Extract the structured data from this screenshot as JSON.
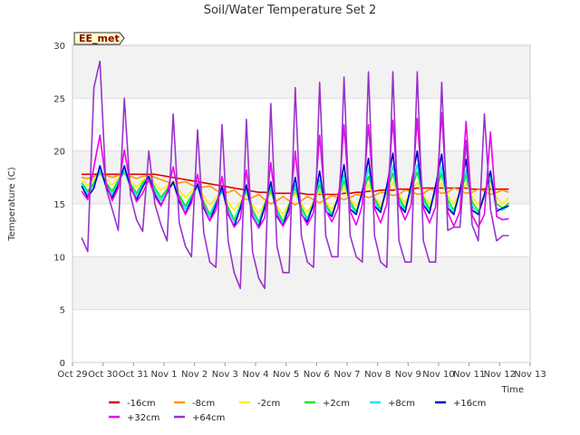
{
  "chart_data": {
    "type": "line",
    "title": "Soil/Water Temperature Set 2",
    "xlabel": "Time",
    "ylabel": "Temperature (C)",
    "badge": "EE_met",
    "ylim": [
      0,
      30
    ],
    "yticks": [
      0,
      5,
      10,
      15,
      20,
      25,
      30
    ],
    "xlim": [
      0,
      15
    ],
    "xticks": [
      {
        "pos": 0,
        "label": "Oct 29"
      },
      {
        "pos": 1,
        "label": "Oct 30"
      },
      {
        "pos": 2,
        "label": "Oct 31"
      },
      {
        "pos": 3,
        "label": "Nov 1"
      },
      {
        "pos": 4,
        "label": "Nov 2"
      },
      {
        "pos": 5,
        "label": "Nov 3"
      },
      {
        "pos": 6,
        "label": "Nov 4"
      },
      {
        "pos": 7,
        "label": "Nov 5"
      },
      {
        "pos": 8,
        "label": "Nov 6"
      },
      {
        "pos": 9,
        "label": "Nov 7"
      },
      {
        "pos": 10,
        "label": "Nov 8"
      },
      {
        "pos": 11,
        "label": "Nov 9"
      },
      {
        "pos": 12,
        "label": "Nov 10"
      },
      {
        "pos": 13,
        "label": "Nov 11"
      },
      {
        "pos": 14,
        "label": "Nov 12"
      },
      {
        "pos": 15,
        "label": "Nov 13"
      }
    ],
    "grid": true,
    "legend_position": "bottom",
    "x": [
      0.3,
      0.5,
      0.7,
      0.9,
      1.1,
      1.3,
      1.5,
      1.7,
      1.9,
      2.1,
      2.3,
      2.5,
      2.7,
      2.9,
      3.1,
      3.3,
      3.5,
      3.7,
      3.9,
      4.1,
      4.3,
      4.5,
      4.7,
      4.9,
      5.1,
      5.3,
      5.5,
      5.7,
      5.9,
      6.1,
      6.3,
      6.5,
      6.7,
      6.9,
      7.1,
      7.3,
      7.5,
      7.7,
      7.9,
      8.1,
      8.3,
      8.5,
      8.7,
      8.9,
      9.1,
      9.3,
      9.5,
      9.7,
      9.9,
      10.1,
      10.3,
      10.5,
      10.7,
      10.9,
      11.1,
      11.3,
      11.5,
      11.7,
      11.9,
      12.1,
      12.3,
      12.5,
      12.7,
      12.9,
      13.1,
      13.3,
      13.5,
      13.7,
      13.9,
      14.1,
      14.3
    ],
    "series": [
      {
        "name": "-16cm",
        "color": "#dd0000",
        "values": [
          17.8,
          17.8,
          17.8,
          17.8,
          17.8,
          17.8,
          17.8,
          17.8,
          17.8,
          17.8,
          17.8,
          17.8,
          17.8,
          17.7,
          17.6,
          17.5,
          17.4,
          17.3,
          17.2,
          17.1,
          17.0,
          16.9,
          16.8,
          16.7,
          16.6,
          16.5,
          16.4,
          16.3,
          16.2,
          16.1,
          16.1,
          16.0,
          16.0,
          16.0,
          16.0,
          16.0,
          16.0,
          15.9,
          15.9,
          15.9,
          15.9,
          15.9,
          15.9,
          16.0,
          16.0,
          16.1,
          16.1,
          16.2,
          16.2,
          16.3,
          16.3,
          16.3,
          16.4,
          16.4,
          16.4,
          16.5,
          16.5,
          16.5,
          16.5,
          16.5,
          16.5,
          16.5,
          16.5,
          16.5,
          16.4,
          16.4,
          16.4,
          16.4,
          16.4,
          16.4,
          16.4
        ]
      },
      {
        "name": "-8cm",
        "color": "#ff9900",
        "values": [
          17.5,
          17.4,
          17.6,
          17.8,
          17.7,
          17.5,
          17.7,
          17.8,
          17.6,
          17.4,
          17.6,
          17.7,
          17.5,
          17.3,
          17.1,
          16.8,
          17.0,
          17.1,
          16.8,
          16.5,
          16.6,
          16.7,
          16.3,
          16.0,
          16.1,
          16.3,
          15.8,
          15.4,
          15.6,
          15.9,
          15.4,
          15.0,
          15.3,
          15.7,
          15.3,
          14.9,
          15.3,
          15.7,
          15.4,
          15.1,
          15.4,
          15.8,
          15.6,
          15.4,
          15.6,
          15.9,
          15.8,
          15.6,
          15.8,
          16.1,
          16.0,
          15.8,
          15.9,
          16.3,
          16.2,
          15.9,
          16.0,
          16.4,
          16.3,
          16.0,
          16.1,
          16.5,
          16.3,
          16.0,
          16.1,
          16.4,
          16.2,
          15.9,
          16.1,
          16.3,
          16.1
        ]
      },
      {
        "name": "-2cm",
        "color": "#ffee00",
        "values": [
          17.2,
          16.8,
          17.3,
          17.9,
          17.3,
          16.8,
          17.4,
          17.9,
          17.2,
          16.6,
          17.2,
          17.6,
          16.9,
          16.3,
          16.7,
          17.1,
          16.3,
          15.6,
          16.2,
          16.7,
          15.7,
          14.9,
          15.6,
          16.2,
          15.2,
          14.4,
          15.2,
          16.0,
          14.9,
          14.1,
          15.1,
          16.0,
          14.8,
          14.0,
          15.0,
          16.0,
          15.0,
          14.2,
          15.2,
          16.2,
          15.2,
          14.5,
          15.5,
          16.5,
          15.4,
          14.8,
          15.8,
          16.8,
          15.6,
          15.0,
          16.0,
          17.0,
          15.8,
          15.1,
          16.2,
          17.0,
          15.8,
          15.0,
          16.1,
          17.0,
          15.8,
          15.0,
          16.0,
          16.9,
          15.7,
          14.9,
          15.8,
          16.7,
          15.6,
          15.0,
          15.6
        ]
      },
      {
        "name": "+2cm",
        "color": "#00ee00",
        "values": [
          17.0,
          16.2,
          17.0,
          18.0,
          17.0,
          16.2,
          17.2,
          18.0,
          16.9,
          16.0,
          17.0,
          17.6,
          16.5,
          15.6,
          16.4,
          17.0,
          15.8,
          14.8,
          15.8,
          16.6,
          15.2,
          14.0,
          15.2,
          16.2,
          14.7,
          13.5,
          14.9,
          16.2,
          14.5,
          13.3,
          14.9,
          16.3,
          14.5,
          13.3,
          14.9,
          16.5,
          14.7,
          13.6,
          15.1,
          16.8,
          15.0,
          14.0,
          15.5,
          17.2,
          15.2,
          14.3,
          15.9,
          17.6,
          15.5,
          14.5,
          16.2,
          17.9,
          15.6,
          14.6,
          16.3,
          18.0,
          15.6,
          14.5,
          16.2,
          17.9,
          15.4,
          14.4,
          16.0,
          17.7,
          15.2,
          14.3,
          15.7,
          17.4,
          15.0,
          14.6,
          15.1
        ]
      },
      {
        "name": "+8cm",
        "color": "#00eeee",
        "values": [
          16.9,
          15.9,
          16.8,
          18.1,
          16.8,
          15.9,
          17.0,
          18.1,
          16.7,
          15.7,
          16.8,
          17.6,
          16.2,
          15.3,
          16.2,
          17.0,
          15.5,
          14.5,
          15.6,
          16.7,
          14.9,
          13.8,
          15.1,
          16.3,
          14.4,
          13.3,
          14.8,
          16.4,
          14.2,
          13.1,
          14.8,
          16.6,
          14.2,
          13.1,
          14.8,
          16.8,
          14.4,
          13.5,
          15.0,
          17.3,
          14.7,
          13.9,
          15.5,
          17.8,
          14.9,
          14.1,
          16.0,
          18.3,
          15.2,
          14.3,
          16.4,
          18.6,
          15.3,
          14.3,
          16.5,
          18.7,
          15.3,
          14.2,
          16.4,
          18.5,
          15.0,
          14.1,
          16.1,
          18.2,
          14.8,
          14.0,
          15.7,
          17.7,
          14.6,
          14.4,
          14.9
        ]
      },
      {
        "name": "+16cm",
        "color": "#0000cc",
        "values": [
          16.7,
          15.6,
          16.5,
          18.6,
          16.6,
          15.6,
          16.8,
          18.6,
          16.5,
          15.4,
          16.6,
          17.6,
          15.9,
          14.9,
          16.0,
          17.1,
          15.2,
          14.1,
          15.4,
          16.9,
          14.6,
          13.4,
          14.9,
          16.6,
          14.0,
          12.9,
          14.6,
          16.8,
          13.8,
          12.8,
          14.7,
          17.1,
          13.8,
          12.9,
          14.7,
          17.5,
          14.0,
          13.3,
          15.0,
          18.1,
          14.3,
          13.8,
          15.6,
          18.7,
          14.5,
          14.0,
          16.2,
          19.3,
          14.8,
          14.2,
          16.7,
          19.8,
          14.9,
          14.2,
          16.8,
          20.0,
          14.9,
          14.1,
          16.7,
          19.7,
          14.6,
          14.0,
          16.3,
          19.2,
          14.4,
          14.0,
          15.9,
          18.1,
          14.3,
          14.6,
          14.8
        ]
      },
      {
        "name": "+32cm",
        "color": "#ee00ee",
        "values": [
          16.2,
          15.4,
          18.5,
          21.5,
          17.0,
          15.3,
          16.5,
          20.1,
          16.8,
          15.2,
          16.0,
          17.3,
          15.7,
          14.8,
          16.1,
          18.5,
          15.5,
          14.0,
          15.1,
          17.8,
          14.8,
          13.4,
          14.4,
          17.6,
          14.1,
          12.8,
          13.6,
          18.2,
          13.9,
          12.7,
          13.7,
          18.9,
          14.0,
          12.9,
          14.0,
          20.0,
          14.1,
          13.0,
          14.2,
          21.5,
          14.4,
          13.3,
          14.6,
          22.5,
          14.3,
          13.0,
          14.9,
          22.5,
          14.6,
          13.2,
          15.0,
          22.9,
          14.9,
          13.5,
          14.9,
          23.1,
          14.6,
          13.2,
          14.7,
          23.6,
          14.2,
          12.9,
          14.3,
          22.8,
          13.9,
          12.8,
          14.0,
          21.8,
          13.8,
          13.5,
          13.6
        ]
      },
      {
        "name": "+64cm",
        "color": "#9933cc",
        "values": [
          11.8,
          10.5,
          26.0,
          28.5,
          16.5,
          14.5,
          12.5,
          25.0,
          15.8,
          13.5,
          12.4,
          20.0,
          15.0,
          13.0,
          11.5,
          23.5,
          13.2,
          11.0,
          10.0,
          22.0,
          12.3,
          9.5,
          9.0,
          22.5,
          11.5,
          8.5,
          7.0,
          23.0,
          10.5,
          8.0,
          7.0,
          24.5,
          11.0,
          8.5,
          8.5,
          26.0,
          12.0,
          9.5,
          9.0,
          26.5,
          12.0,
          10.0,
          10.0,
          27.0,
          12.0,
          10.0,
          9.5,
          27.5,
          12.0,
          9.5,
          9.0,
          27.5,
          11.5,
          9.5,
          9.5,
          27.5,
          11.5,
          9.5,
          9.5,
          26.5,
          12.5,
          12.8,
          12.8,
          21.0,
          13.0,
          11.5,
          23.5,
          14.5,
          11.5,
          12.0,
          12.0
        ]
      }
    ]
  }
}
